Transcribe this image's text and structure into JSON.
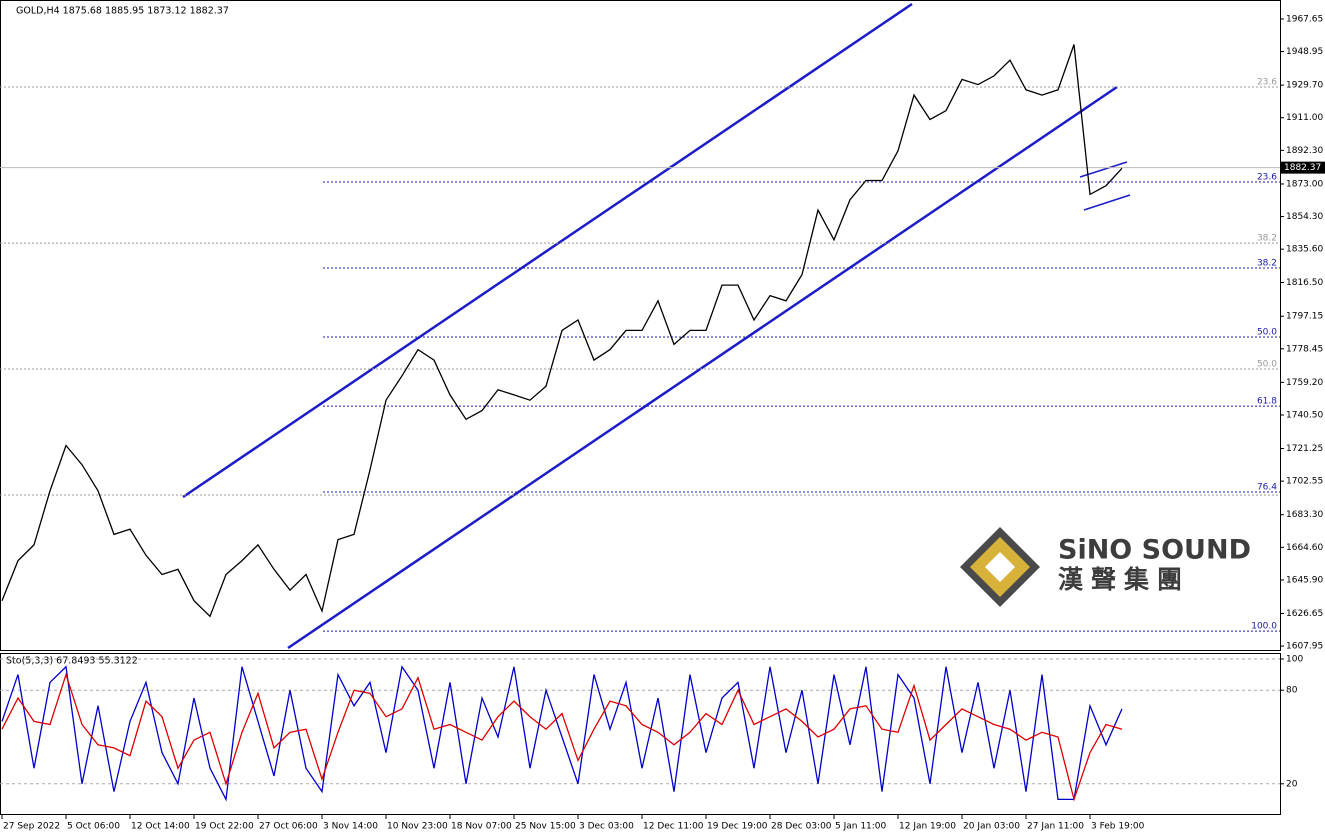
{
  "chart_data": [
    {
      "type": "line",
      "title": "GOLD,H4 1875.68 1885.95 1873.12 1882.37",
      "x": [
        0,
        8,
        16,
        24,
        32,
        40,
        48,
        56,
        64,
        72,
        80,
        88,
        96,
        104,
        112,
        120,
        128,
        136,
        144,
        152,
        160,
        168,
        176,
        184,
        192,
        200,
        208,
        216,
        224,
        232,
        240,
        248,
        256,
        264,
        272,
        280,
        288,
        296,
        304,
        312,
        320,
        328,
        336,
        344,
        352,
        360,
        368,
        376,
        384,
        392,
        400,
        408,
        416,
        424,
        432,
        440,
        448,
        456,
        464,
        472,
        480,
        488,
        496,
        504,
        512,
        520,
        528,
        536,
        544,
        552,
        560
      ],
      "series": [
        {
          "color": "#000000",
          "values": [
            1634,
            1657,
            1666,
            1697,
            1723,
            1712,
            1697,
            1672,
            1675,
            1660,
            1649,
            1652,
            1634,
            1625,
            1649,
            1657,
            1666,
            1652,
            1640,
            1649,
            1628,
            1669,
            1672,
            1709,
            1749,
            1763,
            1778,
            1772,
            1752,
            1738,
            1743,
            1755,
            1752,
            1749,
            1757,
            1789,
            1795,
            1772,
            1778,
            1789,
            1789,
            1806,
            1781,
            1789,
            1789,
            1815,
            1815,
            1795,
            1809,
            1806,
            1821,
            1858,
            1841,
            1864,
            1875,
            1875,
            1892,
            1924,
            1910,
            1915,
            1933,
            1930,
            1935,
            1944,
            1927,
            1924,
            1927,
            1953,
            1867,
            1872,
            1882
          ]
        }
      ],
      "xlim": [
        -1,
        639
      ],
      "ylim": [
        1605.7,
        1976.8
      ],
      "yticks": [
        1967.65,
        1948.95,
        {
          "value": 1929.7,
          "label": "1929.70"
        },
        {
          "value": 1911,
          "label": "1911.00"
        },
        {
          "value": 1892.3,
          "label": "1892.30"
        },
        {
          "value": 1873,
          "label": "1873.00"
        },
        {
          "value": 1854.3,
          "label": "1854.30"
        },
        {
          "value": 1835.6,
          "label": "1835.60"
        },
        {
          "value": 1816.5,
          "label": "1816.50"
        },
        1797.15,
        1778.45,
        {
          "value": 1759.2,
          "label": "1759.20"
        },
        {
          "value": 1740.5,
          "label": "1740.50"
        },
        1721.25,
        1702.55,
        {
          "value": 1683.3,
          "label": "1683.30"
        },
        {
          "value": 1664.6,
          "label": "1664.60"
        },
        {
          "value": 1645.9,
          "label": "1645.90"
        },
        1626.65,
        1607.95
      ],
      "last_price": 1882.37,
      "fib_levels": [
        {
          "label": "23.6",
          "value": 1928.6,
          "color": "#999999"
        },
        {
          "label": "38.2",
          "value": 1839.1,
          "color": "#999999"
        },
        {
          "label": "50.0",
          "value": 1766.9,
          "color": "#999999"
        },
        {
          "value": 1694.6,
          "color": "#999999"
        },
        {
          "label": "23.6",
          "value": 1874.1,
          "color": "#1a1aa6"
        },
        {
          "label": "38.2",
          "value": 1824.8,
          "color": "#1a1aa6"
        },
        {
          "label": "50.0",
          "value": 1785.2,
          "color": "#1a1aa6"
        },
        {
          "label": "61.8",
          "value": 1745.6,
          "color": "#1a1aa6"
        },
        {
          "label": "76.4",
          "value": 1696.3,
          "color": "#1a1aa6"
        },
        {
          "label": "100.0",
          "value": 1616.5,
          "color": "#1a1aa6"
        }
      ]
    },
    {
      "type": "line",
      "title": "Sto(5,3,3) 67.8493 55.3122",
      "x": [
        0,
        8,
        16,
        24,
        32,
        40,
        48,
        56,
        64,
        72,
        80,
        88,
        96,
        104,
        112,
        120,
        128,
        136,
        144,
        152,
        160,
        168,
        176,
        184,
        192,
        200,
        208,
        216,
        224,
        232,
        240,
        248,
        256,
        264,
        272,
        280,
        288,
        296,
        304,
        312,
        320,
        328,
        336,
        344,
        352,
        360,
        368,
        376,
        384,
        392,
        400,
        408,
        416,
        424,
        432,
        440,
        448,
        456,
        464,
        472,
        480,
        488,
        496,
        504,
        512,
        520,
        528,
        536,
        544,
        552,
        560
      ],
      "series": [
        {
          "color": "#0000cc",
          "values": [
            60,
            90,
            30,
            85,
            95,
            20,
            70,
            15,
            60,
            85,
            40,
            20,
            75,
            30,
            10,
            95,
            60,
            25,
            80,
            30,
            15,
            90,
            70,
            85,
            40,
            95,
            80,
            30,
            85,
            20,
            75,
            50,
            95,
            30,
            80,
            50,
            20,
            90,
            55,
            85,
            30,
            75,
            15,
            90,
            40,
            75,
            85,
            30,
            95,
            40,
            80,
            20,
            90,
            45,
            95,
            15,
            90,
            75,
            20,
            95,
            40,
            85,
            30,
            80,
            15,
            90,
            10,
            10,
            70,
            45,
            68
          ]
        },
        {
          "color": "#dd0000",
          "values": [
            55,
            75,
            60,
            58,
            90,
            58,
            45,
            43,
            38,
            73,
            63,
            30,
            48,
            53,
            20,
            53,
            78,
            43,
            53,
            55,
            23,
            53,
            80,
            78,
            63,
            68,
            88,
            55,
            58,
            53,
            48,
            63,
            73,
            63,
            55,
            65,
            35,
            55,
            73,
            70,
            58,
            53,
            45,
            53,
            65,
            58,
            80,
            58,
            63,
            68,
            60,
            50,
            55,
            68,
            70,
            55,
            53,
            83,
            48,
            58,
            68,
            63,
            58,
            55,
            48,
            53,
            50,
            10,
            40,
            58,
            55
          ]
        }
      ],
      "xlim": [
        -1,
        639
      ],
      "ylim": [
        0,
        100
      ],
      "yticks": [
        100,
        80,
        20
      ],
      "grid": true,
      "xticks": [
        {
          "value": 0,
          "label": "27 Sep 2022"
        },
        {
          "value": 32,
          "label": "5 Oct 06:00"
        },
        {
          "value": 64,
          "label": "12 Oct 14:00"
        },
        {
          "value": 96,
          "label": "19 Oct 22:00"
        },
        {
          "value": 128,
          "label": "27 Oct 06:00"
        },
        {
          "value": 160,
          "label": "3 Nov 14:00"
        },
        {
          "value": 192,
          "label": "10 Nov 23:00"
        },
        {
          "value": 224,
          "label": "18 Nov 07:00"
        },
        {
          "value": 256,
          "label": "25 Nov 15:00"
        },
        {
          "value": 288,
          "label": "3 Dec 03:00"
        },
        {
          "value": 320,
          "label": "12 Dec 11:00"
        },
        {
          "value": 352,
          "label": "19 Dec 19:00"
        },
        {
          "value": 384,
          "label": "28 Dec 03:00"
        },
        {
          "value": 416,
          "label": "5 Jan 11:00"
        },
        {
          "value": 448,
          "label": "12 Jan 19:00"
        },
        {
          "value": 480,
          "label": "20 Jan 03:00"
        },
        {
          "value": 512,
          "label": "27 Jan 11:00"
        },
        {
          "value": 544,
          "label": "3 Feb 19:00"
        }
      ]
    }
  ],
  "logo": {
    "name": "SiNO SOUND",
    "chinese": "漢聲集團"
  }
}
